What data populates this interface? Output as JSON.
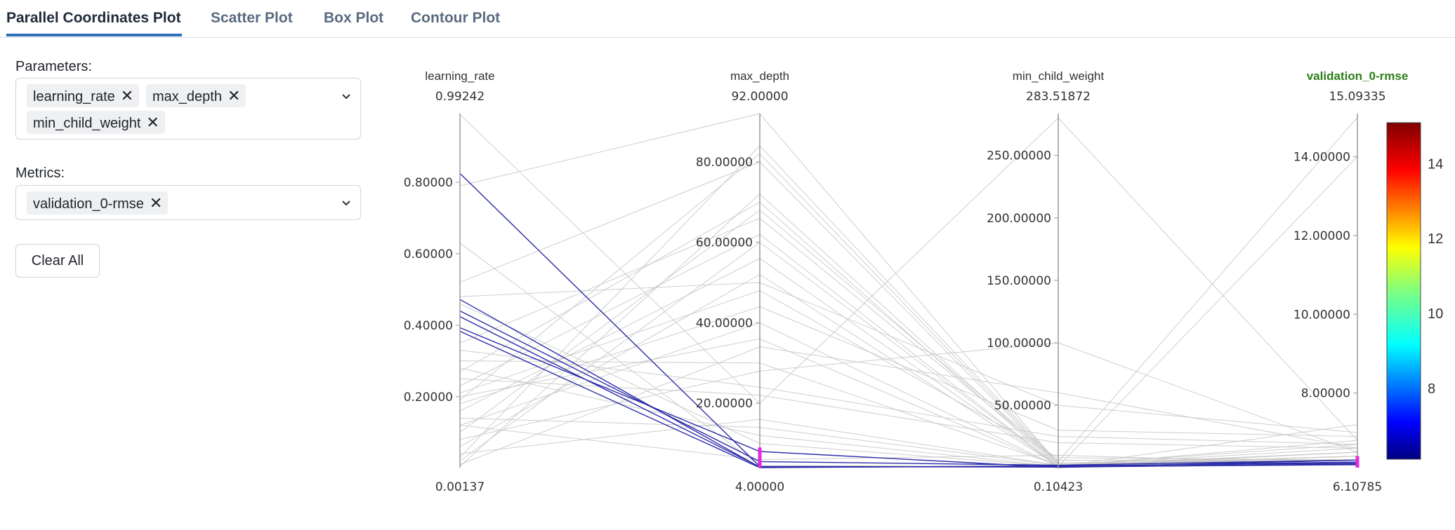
{
  "tabs": [
    {
      "label": "Parallel Coordinates Plot",
      "active": true
    },
    {
      "label": "Scatter Plot",
      "active": false
    },
    {
      "label": "Box Plot",
      "active": false
    },
    {
      "label": "Contour Plot",
      "active": false
    }
  ],
  "form": {
    "parameters_label": "Parameters:",
    "parameters": [
      "learning_rate",
      "max_depth",
      "min_child_weight"
    ],
    "metrics_label": "Metrics:",
    "metrics": [
      "validation_0-rmse"
    ],
    "remove_icon": "close-icon",
    "dropdown_icon": "chevron-down-icon",
    "clear_all_label": "Clear All"
  },
  "colors": {
    "accent": "#2f6db5",
    "metric_title": "#2e7d1a",
    "selected_line": "#2c2ca8",
    "unselected_line": "#c9c9c9",
    "brush": "#e02ce0"
  },
  "chart_data": {
    "type": "parallel_coordinates",
    "dimensions": [
      {
        "name": "learning_rate",
        "max_label": "0.99242",
        "min_label": "0.00137",
        "range": [
          0.00137,
          0.99242
        ],
        "ticks": [
          0.2,
          0.4,
          0.6,
          0.8
        ],
        "tick_labels": [
          "0.20000",
          "0.40000",
          "0.60000",
          "0.80000"
        ]
      },
      {
        "name": "max_depth",
        "max_label": "92.00000",
        "min_label": "4.00000",
        "range": [
          4,
          92
        ],
        "ticks": [
          20,
          40,
          60,
          80
        ],
        "tick_labels": [
          "20.00000",
          "40.00000",
          "60.00000",
          "80.00000"
        ]
      },
      {
        "name": "min_child_weight",
        "max_label": "283.51872",
        "min_label": "0.10423",
        "range": [
          0.10423,
          283.51872
        ],
        "ticks": [
          50,
          100,
          150,
          200,
          250
        ],
        "tick_labels": [
          "50.00000",
          "100.00000",
          "150.00000",
          "200.00000",
          "250.00000"
        ]
      },
      {
        "name": "validation_0-rmse",
        "max_label": "15.09335",
        "min_label": "6.10785",
        "range": [
          6.10785,
          15.09335
        ],
        "ticks": [
          8,
          10,
          12,
          14
        ],
        "tick_labels": [
          "8.00000",
          "10.00000",
          "12.00000",
          "14.00000"
        ],
        "is_metric": true
      }
    ],
    "colorbar": {
      "range": [
        6.10785,
        15.09335
      ],
      "ticks": [
        8,
        10,
        12,
        14
      ],
      "tick_labels": [
        "8",
        "10",
        "12",
        "14"
      ],
      "colorscale": "jet"
    },
    "brushes": [
      {
        "dimension": "max_depth",
        "range": [
          4,
          9
        ]
      },
      {
        "dimension": "validation_0-rmse",
        "range": [
          6.10785,
          6.4
        ]
      }
    ],
    "selected_lines": [
      [
        0.825,
        4.3,
        0.5,
        6.2
      ],
      [
        0.472,
        4.1,
        1.0,
        6.25
      ],
      [
        0.44,
        5.5,
        2.0,
        6.3
      ],
      [
        0.424,
        4.2,
        0.8,
        6.18
      ],
      [
        0.393,
        8.0,
        0.3,
        6.3
      ],
      [
        0.383,
        4.0,
        1.5,
        6.22
      ]
    ],
    "unselected_lines": [
      [
        0.99,
        20,
        280,
        6.8
      ],
      [
        0.79,
        92,
        3,
        6.3
      ],
      [
        0.63,
        4.5,
        1,
        6.5
      ],
      [
        0.52,
        80,
        2,
        6.4
      ],
      [
        0.48,
        50,
        50,
        7.0
      ],
      [
        0.46,
        10,
        1,
        6.8
      ],
      [
        0.35,
        66,
        5,
        15.0
      ],
      [
        0.3,
        30,
        2,
        6.7
      ],
      [
        0.27,
        70,
        1,
        6.5
      ],
      [
        0.25,
        22,
        20,
        6.6
      ],
      [
        0.23,
        62,
        1,
        6.4
      ],
      [
        0.21,
        48,
        8,
        6.3
      ],
      [
        0.2,
        36,
        1,
        6.5
      ],
      [
        0.19,
        82,
        3,
        6.2
      ],
      [
        0.18,
        44,
        30,
        6.9
      ],
      [
        0.16,
        56,
        1,
        6.4
      ],
      [
        0.14,
        14,
        2,
        6.6
      ],
      [
        0.12,
        40,
        1,
        7.2
      ],
      [
        0.1,
        68,
        6,
        6.3
      ],
      [
        0.08,
        28,
        100,
        6.5
      ],
      [
        0.06,
        52,
        1,
        6.4
      ],
      [
        0.04,
        16,
        2,
        6.5
      ],
      [
        0.03,
        84,
        4,
        6.3
      ],
      [
        0.02,
        60,
        1,
        14.0
      ],
      [
        0.01,
        34,
        60,
        6.6
      ],
      [
        0.005,
        72,
        2,
        6.4
      ],
      [
        0.12,
        6,
        10,
        6.2
      ],
      [
        0.28,
        12,
        1,
        6.3
      ],
      [
        0.33,
        24,
        25,
        6.7
      ]
    ]
  }
}
